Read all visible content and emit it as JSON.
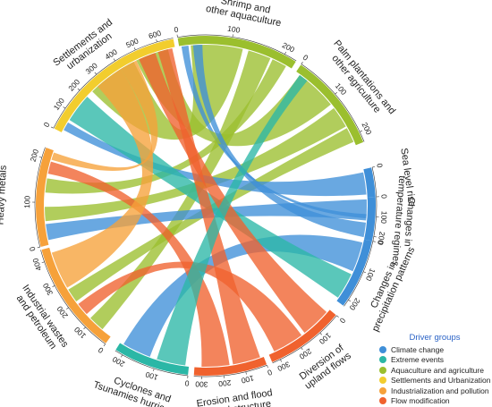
{
  "chart_data": {
    "type": "chord",
    "legend_title": "Driver groups",
    "groups": [
      {
        "name": "Climate change",
        "color": "#3f8fd8"
      },
      {
        "name": "Extreme events",
        "color": "#2bb7a6"
      },
      {
        "name": "Aquaculture and agriculture",
        "color": "#9bbf2e"
      },
      {
        "name": "Settlements and Urbanization",
        "color": "#f2cd2e"
      },
      {
        "name": "Industrialization and pollution",
        "color": "#f6a13a"
      },
      {
        "name": "Flow modification",
        "color": "#f0622e"
      }
    ],
    "sectors": [
      {
        "id": "shrimp",
        "label": "Shrimp and other aquaculture",
        "group": 2,
        "a0": -9.5,
        "a1": 32,
        "max": 200,
        "ticks": [
          0,
          100,
          200
        ]
      },
      {
        "id": "palm",
        "label": "Palm plantations and other agriculture",
        "group": 2,
        "a0": 34,
        "a1": 68,
        "max": 200,
        "ticks": [
          0,
          100,
          200
        ]
      },
      {
        "id": "sea",
        "label": "Sea level rise",
        "group": 0,
        "a0": 77,
        "a1": 87,
        "max": 0,
        "ticks": [
          0
        ]
      },
      {
        "id": "temp",
        "label": "Changes in temperature regimes",
        "group": 0,
        "a0": 87,
        "a1": 102,
        "max": 200,
        "ticks": [
          0,
          100,
          200
        ]
      },
      {
        "id": "precip",
        "label": "Changes in precipitation patterns",
        "group": 0,
        "a0": 102,
        "a1": 126,
        "max": 200,
        "ticks": [
          0,
          100,
          200
        ]
      },
      {
        "id": "upland",
        "label": "Diversion of upland flows",
        "group": 5,
        "a0": 130,
        "a1": 157,
        "max": 300,
        "ticks": [
          0,
          100,
          200,
          300
        ]
      },
      {
        "id": "erosion",
        "label": "Erosion and flood control structure",
        "group": 5,
        "a0": 159,
        "a1": 184,
        "max": 300,
        "ticks": [
          0,
          100,
          200,
          300
        ]
      },
      {
        "id": "cyclones",
        "label": "Cyclones and Tsunamies hurricanes",
        "group": 1,
        "a0": 186,
        "a1": 212,
        "max": 200,
        "ticks": [
          0,
          100,
          200
        ]
      },
      {
        "id": "industrial",
        "label": "Industrial wastes and petroleum",
        "group": 4,
        "a0": 216,
        "a1": 255,
        "max": 400,
        "ticks": [
          0,
          100,
          200,
          300,
          400
        ]
      },
      {
        "id": "heavy",
        "label": "Heavy metals",
        "group": 4,
        "a0": 256,
        "a1": 290,
        "max": 200,
        "ticks": [
          0,
          100,
          200
        ]
      },
      {
        "id": "settle",
        "label": "Settlements and urbanization",
        "group": 3,
        "a0": 297,
        "a1": 349,
        "max": 600,
        "ticks": [
          0,
          100,
          200,
          300,
          400,
          500,
          600
        ]
      }
    ],
    "chords": [
      {
        "from": "shrimp",
        "to": "settle",
        "fs": 0.1,
        "fe": 0.55,
        "ts": 0.35,
        "te": 0.7,
        "color": 2
      },
      {
        "from": "shrimp",
        "to": "industrial",
        "fs": 0.6,
        "fe": 0.8,
        "ts": 0.1,
        "te": 0.25,
        "color": 2
      },
      {
        "from": "shrimp",
        "to": "heavy",
        "fs": 0.82,
        "fe": 0.95,
        "ts": 0.55,
        "te": 0.7,
        "color": 2
      },
      {
        "from": "shrimp",
        "to": "temp",
        "fs": 0.02,
        "fe": 0.08,
        "ts": 0.4,
        "te": 0.5,
        "color": 0
      },
      {
        "from": "palm",
        "to": "settle",
        "fs": 0.05,
        "fe": 0.5,
        "ts": 0.72,
        "te": 0.95,
        "color": 2
      },
      {
        "from": "palm",
        "to": "heavy",
        "fs": 0.55,
        "fe": 0.78,
        "ts": 0.25,
        "te": 0.4,
        "color": 2
      },
      {
        "from": "palm",
        "to": "industrial",
        "fs": 0.8,
        "fe": 0.96,
        "ts": 0.45,
        "te": 0.58,
        "color": 2
      },
      {
        "from": "sea",
        "to": "settle",
        "fs": 0.1,
        "fe": 0.9,
        "ts": 0.02,
        "te": 0.08,
        "color": 0
      },
      {
        "from": "temp",
        "to": "heavy",
        "fs": 0.05,
        "fe": 0.55,
        "ts": 0.05,
        "te": 0.22,
        "color": 0
      },
      {
        "from": "temp",
        "to": "shrimp",
        "fs": 0.6,
        "fe": 0.95,
        "ts": 0.12,
        "te": 0.2,
        "color": 0
      },
      {
        "from": "precip",
        "to": "cyclones",
        "fs": 0.05,
        "fe": 0.5,
        "ts": 0.55,
        "te": 0.95,
        "color": 0
      },
      {
        "from": "precip",
        "to": "settle",
        "fs": 0.55,
        "fe": 0.95,
        "ts": 0.1,
        "te": 0.3,
        "color": 1
      },
      {
        "from": "upland",
        "to": "settle",
        "fs": 0.05,
        "fe": 0.45,
        "ts": 0.74,
        "te": 0.86,
        "color": 5
      },
      {
        "from": "upland",
        "to": "industrial",
        "fs": 0.5,
        "fe": 0.92,
        "ts": 0.3,
        "te": 0.42,
        "color": 5
      },
      {
        "from": "erosion",
        "to": "settle",
        "fs": 0.05,
        "fe": 0.45,
        "ts": 0.88,
        "te": 0.98,
        "color": 5
      },
      {
        "from": "erosion",
        "to": "heavy",
        "fs": 0.5,
        "fe": 0.9,
        "ts": 0.75,
        "te": 0.88,
        "color": 5
      },
      {
        "from": "cyclones",
        "to": "palm",
        "fs": 0.05,
        "fe": 0.45,
        "ts": 0.05,
        "te": 0.15,
        "color": 1
      },
      {
        "from": "industrial",
        "to": "settle",
        "fs": 0.6,
        "fe": 0.95,
        "ts": 0.4,
        "te": 0.6,
        "color": 4
      },
      {
        "from": "heavy",
        "to": "settle",
        "fs": 0.9,
        "fe": 0.98,
        "ts": 0.6,
        "te": 0.72,
        "color": 4
      }
    ]
  }
}
